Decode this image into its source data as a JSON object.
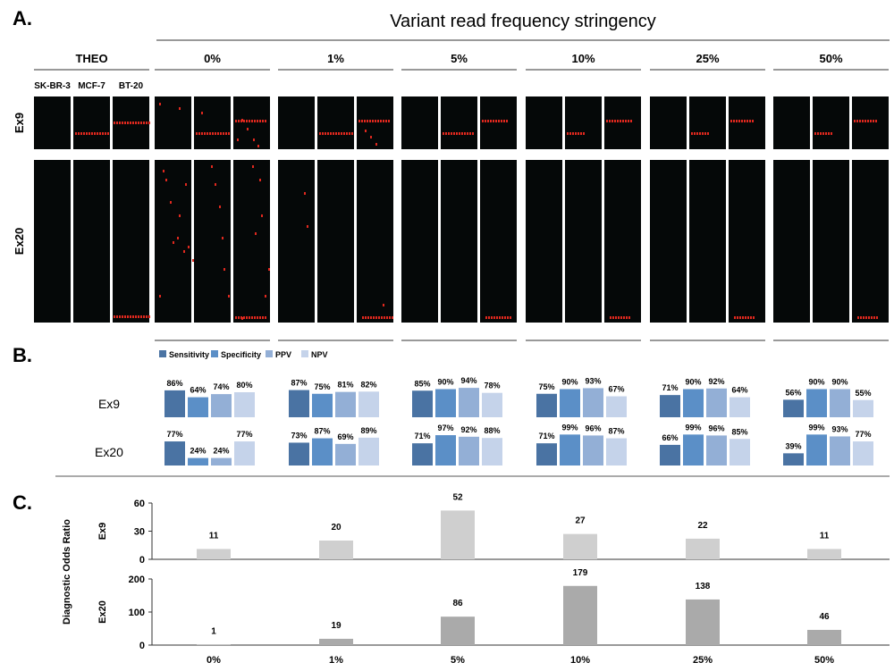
{
  "panels": {
    "a": "A.",
    "b": "B.",
    "c": "C."
  },
  "panel_a": {
    "header": "Variant read frequency stringency",
    "groups": [
      "THEO",
      "0%",
      "1%",
      "5%",
      "10%",
      "25%",
      "50%"
    ],
    "strains": [
      "SK-BR-3",
      "MCF-7",
      "BT-20"
    ],
    "rows": [
      "Ex9",
      "Ex20"
    ]
  },
  "chart_data": [
    {
      "type": "bar",
      "title": "",
      "legend": [
        "Sensitivity",
        "Specificity",
        "PPV",
        "NPV"
      ],
      "legend_placement": "top-left",
      "colors": [
        "#4a73a3",
        "#5b8fc7",
        "#93afd6",
        "#c5d3ea"
      ],
      "categories": [
        "0%",
        "1%",
        "5%",
        "10%",
        "25%",
        "50%"
      ],
      "rows": [
        {
          "name": "Ex9",
          "series": [
            {
              "name": "Sensitivity",
              "values": [
                86,
                87,
                85,
                75,
                71,
                56
              ]
            },
            {
              "name": "Specificity",
              "values": [
                64,
                75,
                90,
                90,
                90,
                90
              ]
            },
            {
              "name": "PPV",
              "values": [
                74,
                81,
                94,
                93,
                92,
                90
              ]
            },
            {
              "name": "NPV",
              "values": [
                80,
                82,
                78,
                67,
                64,
                55
              ]
            }
          ]
        },
        {
          "name": "Ex20",
          "series": [
            {
              "name": "Sensitivity",
              "values": [
                77,
                73,
                71,
                71,
                66,
                39
              ]
            },
            {
              "name": "Specificity",
              "values": [
                24,
                87,
                97,
                99,
                99,
                99
              ]
            },
            {
              "name": "PPV",
              "values": [
                24,
                69,
                92,
                96,
                96,
                93
              ]
            },
            {
              "name": "NPV",
              "values": [
                77,
                89,
                88,
                87,
                85,
                77
              ]
            }
          ]
        }
      ]
    },
    {
      "type": "bar",
      "title": "",
      "ylabel": "Diagnostic Odds Ratio",
      "categories": [
        "0%",
        "1%",
        "5%",
        "10%",
        "25%",
        "50%"
      ],
      "subplots": [
        {
          "name": "Ex9",
          "values": [
            11,
            20,
            52,
            27,
            22,
            11
          ],
          "ylim": [
            0,
            60
          ],
          "yticks": [
            0,
            30,
            60
          ],
          "color": "#cfcfcf"
        },
        {
          "name": "Ex20",
          "values": [
            1,
            19,
            86,
            179,
            138,
            46
          ],
          "ylim": [
            0,
            200
          ],
          "yticks": [
            0,
            100,
            200
          ],
          "color": "#aaaaaa"
        }
      ]
    }
  ]
}
